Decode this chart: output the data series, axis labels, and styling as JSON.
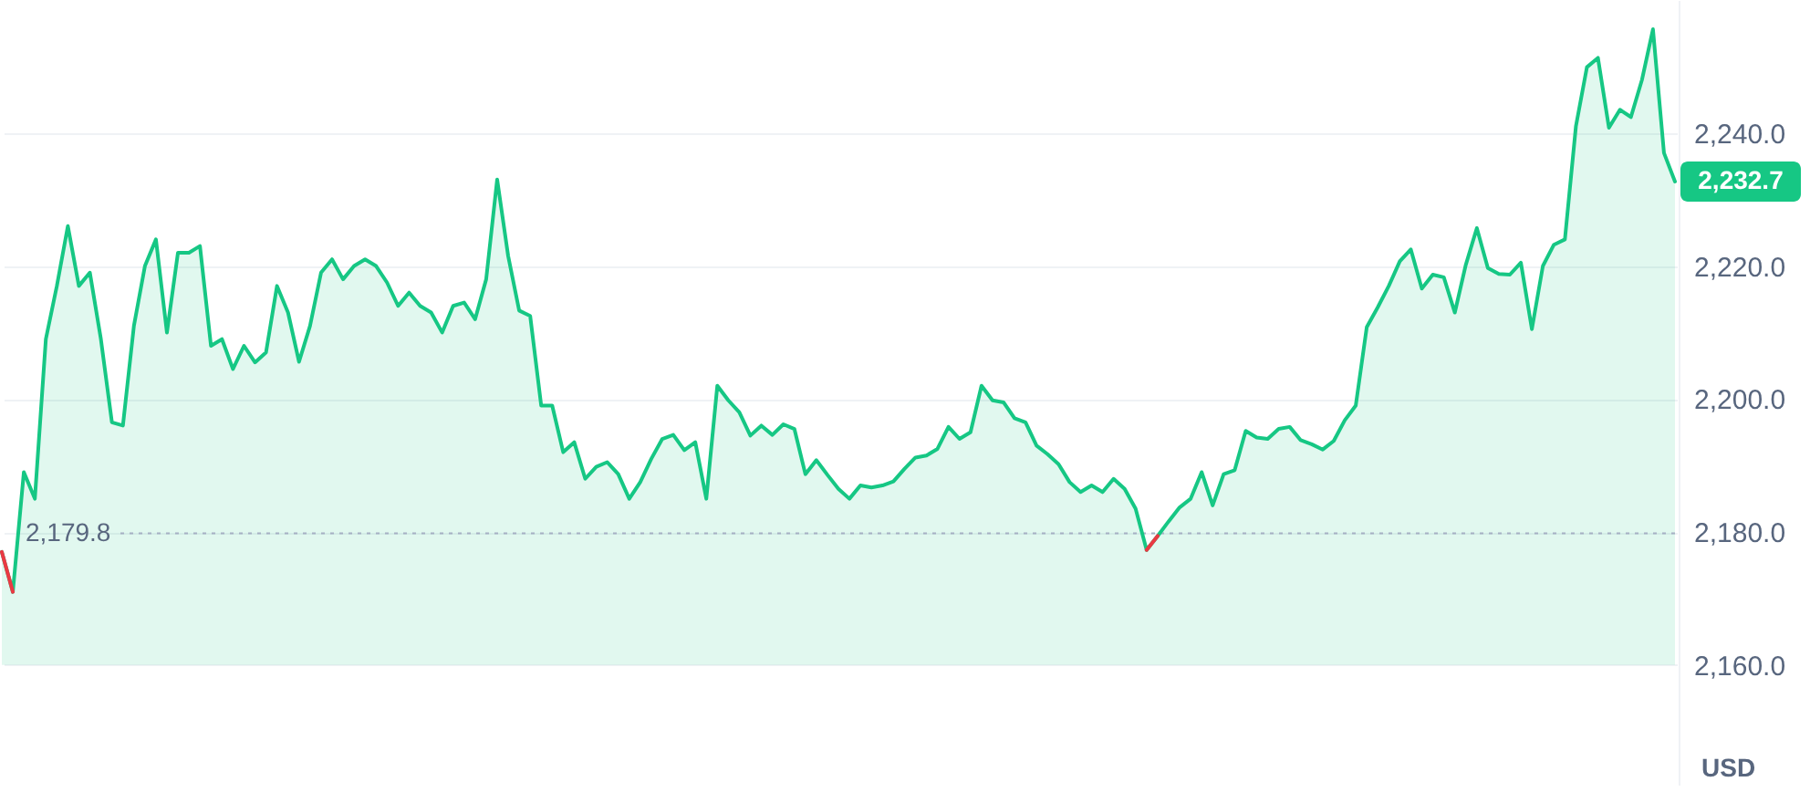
{
  "chart_data": {
    "type": "area",
    "categories": [
      null,
      null,
      null,
      null,
      null,
      null,
      null,
      null,
      null,
      null,
      null,
      null,
      null,
      null,
      null,
      null,
      null,
      null,
      null,
      null,
      null,
      null,
      null,
      null,
      null,
      null,
      null,
      null,
      null,
      null,
      null,
      null,
      null,
      null,
      null,
      null,
      null,
      null,
      null,
      null,
      null,
      null,
      null,
      null,
      null,
      null,
      null,
      null,
      null,
      null,
      null,
      null,
      null,
      null,
      null,
      null,
      null,
      null,
      null,
      null,
      null,
      null,
      null,
      null,
      null,
      null,
      null,
      null,
      null,
      null,
      null,
      null,
      null,
      null,
      null,
      null,
      null,
      null,
      null,
      null,
      null,
      null,
      null,
      null,
      null,
      null,
      null,
      null,
      null,
      null,
      null,
      null,
      null,
      null,
      null,
      null,
      null,
      null,
      null,
      null,
      null,
      null,
      null,
      null,
      null,
      null,
      null,
      null,
      null,
      null,
      null,
      null,
      null,
      null,
      null,
      null,
      null,
      null,
      null,
      null,
      null,
      null,
      null,
      null,
      null,
      null,
      null,
      null,
      null,
      null,
      null,
      null,
      null,
      null,
      null,
      null,
      null,
      null,
      null,
      null,
      null,
      null,
      null,
      null,
      null,
      null,
      null,
      null,
      null,
      null,
      null,
      null,
      null
    ],
    "series": [
      {
        "color": "#16c784",
        "values": [
          2177,
          2171,
          2189,
          2185,
          2209,
          2217,
          2226,
          2217,
          2219,
          2209,
          2196.5,
          2196,
          2211,
          2220,
          2224,
          2210,
          2222,
          2222,
          2223,
          2208,
          2209,
          2204.5,
          2208,
          2205.5,
          2207,
          2217,
          2213,
          2205.6,
          2211,
          2219,
          2221,
          2218,
          2220,
          2221,
          2220,
          2217.5,
          2214,
          2216,
          2214,
          2213,
          2210,
          2214,
          2214.5,
          2212,
          2218,
          2233,
          2221.5,
          2213.3,
          2212.5,
          2199,
          2199,
          2192,
          2193.5,
          2188,
          2189.8,
          2190.5,
          2188.7,
          2185,
          2187.5,
          2191,
          2194,
          2194.6,
          2192.3,
          2193.5,
          2185,
          2202,
          2199.8,
          2198,
          2194.5,
          2196,
          2194.6,
          2196.2,
          2195.5,
          2188.7,
          2190.8,
          2188.6,
          2186.5,
          2185,
          2187,
          2186.7,
          2187,
          2187.6,
          2189.5,
          2191.2,
          2191.5,
          2192.5,
          2195.8,
          2194,
          2195,
          2202,
          2199.8,
          2199.5,
          2197.1,
          2196.5,
          2193,
          2191.7,
          2190.2,
          2187.5,
          2186,
          2187,
          2186,
          2188,
          2186.5,
          2183.5,
          2177.3,
          2179.4,
          2181.6,
          2183.7,
          2185,
          2189,
          2184,
          2188.7,
          2189.3,
          2195.2,
          2194.2,
          2194,
          2195.5,
          2195.8,
          2193.8,
          2193.2,
          2192.4,
          2193.7,
          2196.8,
          2199,
          2210.8,
          2213.8,
          2217,
          2220.7,
          2222.5,
          2216.6,
          2218.7,
          2218.3,
          2213,
          2220.2,
          2225.7,
          2219.7,
          2218.8,
          2218.7,
          2220.5,
          2210.5,
          2220,
          2223.2,
          2224,
          2241,
          2249.9,
          2251.3,
          2240.8,
          2243.5,
          2242.4,
          2248,
          2255.6,
          2237,
          2232.7
        ],
        "value_labels": [
          null,
          null,
          null,
          null,
          null,
          null,
          null,
          null,
          null,
          null,
          null,
          null,
          null,
          null,
          null,
          null,
          null,
          null,
          null,
          null,
          null,
          null,
          null,
          null,
          null,
          null,
          null,
          null,
          null,
          null,
          null,
          null,
          null,
          null,
          null,
          null,
          null,
          null,
          null,
          null,
          null,
          null,
          null,
          null,
          null,
          null,
          null,
          null,
          null,
          null,
          null,
          null,
          null,
          null,
          null,
          null,
          null,
          null,
          null,
          null,
          null,
          null,
          null,
          null,
          null,
          null,
          null,
          null,
          null,
          null,
          null,
          null,
          null,
          null,
          null,
          null,
          null,
          null,
          null,
          null,
          null,
          null,
          null,
          null,
          null,
          null,
          null,
          null,
          null,
          null,
          null,
          null,
          null,
          null,
          null,
          null,
          null,
          null,
          null,
          null,
          null,
          null,
          null,
          null,
          null,
          null,
          null,
          null,
          null,
          null,
          null,
          null,
          null,
          null,
          null,
          null,
          null,
          null,
          null,
          null,
          null,
          null,
          null,
          null,
          null,
          null,
          null,
          null,
          null,
          null,
          null,
          null,
          null,
          null,
          null,
          null,
          null,
          null,
          null,
          null,
          null,
          null,
          null,
          null,
          null,
          null,
          null,
          null,
          null,
          null,
          null,
          null,
          "2,232.7"
        ]
      },
      {
        "type": "line",
        "color": "#ea3943",
        "values": [
          2177,
          2171,
          null,
          null,
          null,
          null,
          null,
          null,
          null,
          null,
          null,
          null,
          null,
          null,
          null,
          null,
          null,
          null,
          null,
          null,
          null,
          null,
          null,
          null,
          null,
          null,
          null,
          null,
          null,
          null,
          null,
          null,
          null,
          null,
          null,
          null,
          null,
          null,
          null,
          null,
          null,
          null,
          null,
          null,
          null,
          null,
          null,
          null,
          null,
          null,
          null,
          null,
          null,
          null,
          null,
          null,
          null,
          null,
          null,
          null,
          null,
          null,
          null,
          null,
          null,
          null,
          null,
          null,
          null,
          null,
          null,
          null,
          null,
          null,
          null,
          null,
          null,
          null,
          null,
          null,
          null,
          null,
          null,
          null,
          null,
          null,
          null,
          null,
          null,
          null,
          null,
          null,
          null,
          null,
          null,
          null,
          null,
          null,
          null,
          null,
          null,
          null,
          null,
          null,
          2177.3,
          2179.4,
          null,
          null,
          null,
          null,
          null,
          null,
          null,
          null,
          null,
          null,
          null,
          null,
          null,
          null,
          null,
          null,
          null,
          null,
          null,
          null,
          null,
          null,
          null,
          null,
          null,
          null,
          null,
          null,
          null,
          null,
          null,
          null,
          null,
          null,
          null,
          null,
          null,
          null,
          null,
          null,
          null,
          null,
          null,
          null,
          null,
          null,
          null
        ]
      }
    ],
    "ylim": [
      2142,
      2260
    ],
    "yticks": [
      {
        "value": 2160,
        "label": "2,160.0"
      },
      {
        "value": 2180,
        "label": "2,180.0"
      },
      {
        "value": 2200,
        "label": "2,200.0"
      },
      {
        "value": 2220,
        "label": "2,220.0"
      },
      {
        "value": 2240,
        "label": "2,240.0"
      }
    ],
    "ylabel": "USD",
    "ref_lines": [
      {
        "axis": "y",
        "value": 2179.8,
        "label": "2,179.8",
        "color": "#a6b0c3",
        "line_style": "dotted"
      }
    ],
    "grid": "y",
    "tick_labels": "y"
  }
}
